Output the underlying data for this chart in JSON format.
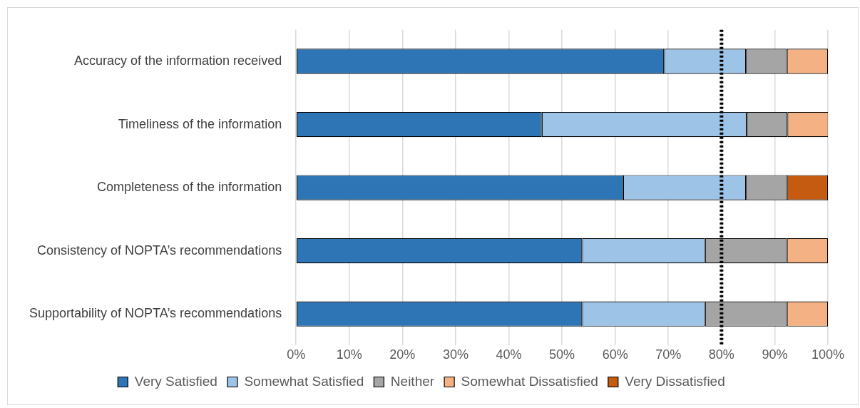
{
  "chart_data": {
    "type": "bar",
    "orientation": "horizontal",
    "stacked": true,
    "categories": [
      "Accuracy of the information received",
      "Timeliness of the information",
      "Completeness of the information",
      "Consistency of NOPTA’s recommendations",
      "Supportability of NOPTA’s recommendations"
    ],
    "series": [
      {
        "name": "Very Satisfied",
        "color": "#2e75b6",
        "values": [
          69.2,
          46.2,
          61.5,
          53.8,
          53.8
        ]
      },
      {
        "name": "Somewhat Satisfied",
        "color": "#9dc3e6",
        "values": [
          15.4,
          38.5,
          23.1,
          23.1,
          23.1
        ]
      },
      {
        "name": "Neither",
        "color": "#a5a5a5",
        "values": [
          7.7,
          7.7,
          7.7,
          15.4,
          15.4
        ]
      },
      {
        "name": "Somewhat Dissatisfied",
        "color": "#f4b183",
        "values": [
          7.7,
          7.7,
          null,
          7.7,
          7.7
        ]
      },
      {
        "name": "Very Dissatisfied",
        "color": "#c55a11",
        "values": [
          null,
          null,
          7.7,
          null,
          null
        ]
      }
    ],
    "xlim": [
      0,
      100
    ],
    "xticks": [
      {
        "value": 0,
        "label": "0%"
      },
      {
        "value": 10,
        "label": "10%"
      },
      {
        "value": 20,
        "label": "20%"
      },
      {
        "value": 30,
        "label": "30%"
      },
      {
        "value": 40,
        "label": "40%"
      },
      {
        "value": 50,
        "label": "50%"
      },
      {
        "value": 60,
        "label": "60%"
      },
      {
        "value": 70,
        "label": "70%"
      },
      {
        "value": 80,
        "label": "80%"
      },
      {
        "value": 90,
        "label": "90%"
      },
      {
        "value": 100,
        "label": "100%"
      }
    ],
    "grid": "x",
    "legend": "bottom",
    "ref_lines": [
      {
        "axis": "x",
        "value": 80,
        "color": "#000000",
        "line_style": "dotted"
      }
    ]
  }
}
